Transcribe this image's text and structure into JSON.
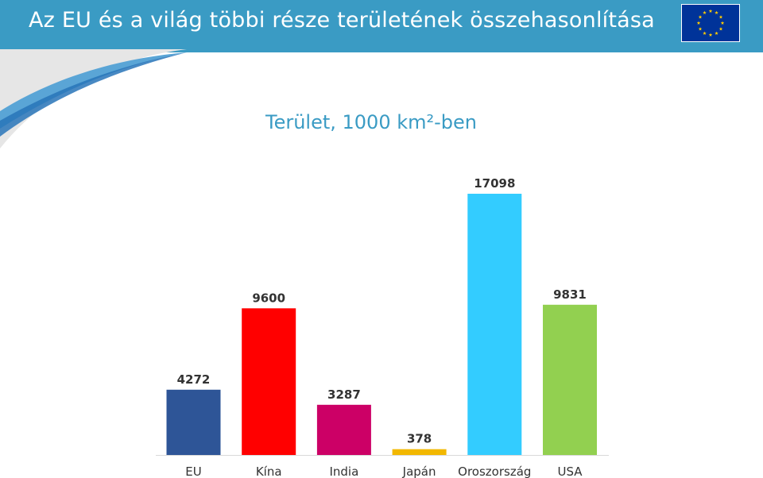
{
  "slide": {
    "title": "Az EU és a világ többi része területének összehasonlítása"
  },
  "colors": {
    "header": "#3a9bc4",
    "flag_blue": "#003399",
    "flag_star": "#ffcc00"
  },
  "icons": {
    "flag": "eu-flag-icon"
  },
  "chart_data": {
    "type": "bar",
    "title": "Terület, 1000 km²-ben",
    "xlabel": "",
    "ylabel": "",
    "ylim": [
      0,
      17098
    ],
    "grid": false,
    "categories": [
      "EU",
      "Kína",
      "India",
      "Japán",
      "Oroszország",
      "USA"
    ],
    "values": [
      4272,
      9600,
      3287,
      378,
      17098,
      9831
    ],
    "colors": [
      "#2e5597",
      "#ff0000",
      "#cc0066",
      "#f2b800",
      "#33ccff",
      "#92d050"
    ]
  }
}
